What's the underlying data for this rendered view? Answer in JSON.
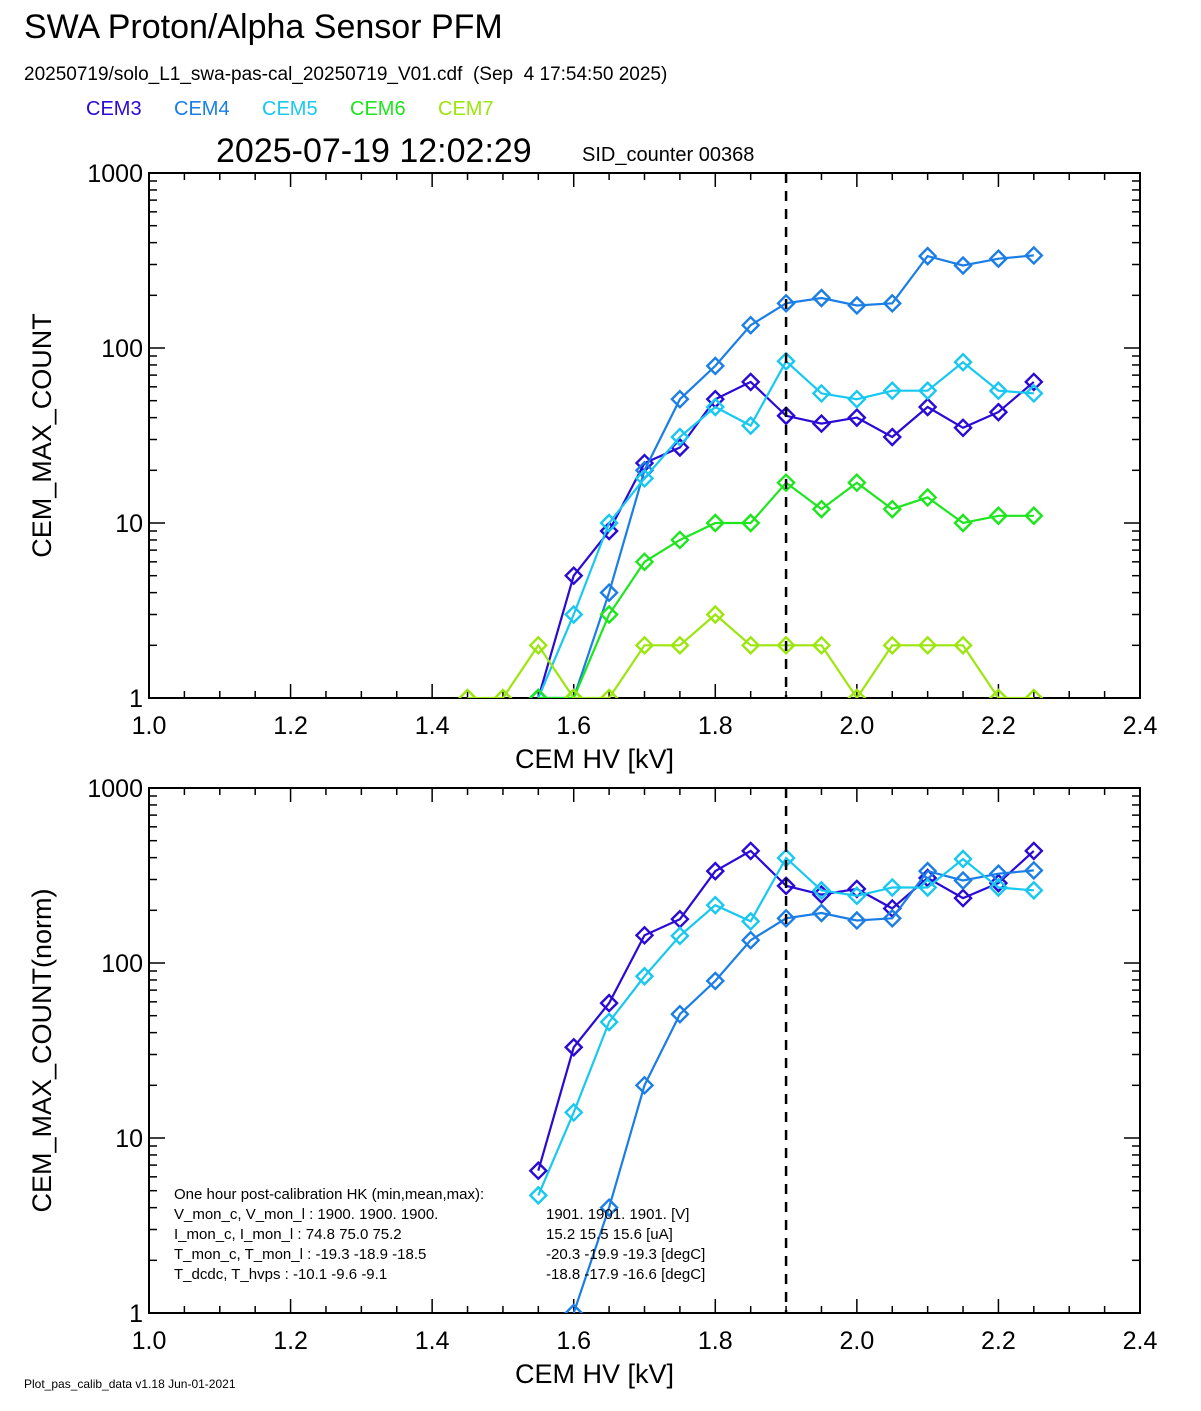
{
  "header": {
    "title": "SWA Proton/Alpha Sensor PFM",
    "subtitle": "20250719/solo_L1_swa-pas-cal_20250719_V01.cdf  (Sep  4 17:54:50 2025)",
    "timestamp": "2025-07-19 12:02:29",
    "sid": "SID_counter 00368"
  },
  "legend": [
    {
      "label": "CEM3",
      "color": "#2a0ad6"
    },
    {
      "label": "CEM4",
      "color": "#1a7ee6"
    },
    {
      "label": "CEM5",
      "color": "#18c8f0"
    },
    {
      "label": "CEM6",
      "color": "#1ee61e"
    },
    {
      "label": "CEM7",
      "color": "#9ce60e"
    }
  ],
  "footer": "Plot_pas_calib_data v1.18 Jun-01-2021",
  "hk": {
    "lines": [
      {
        "a": "One hour post-calibration HK (min,mean,max):",
        "b": ""
      },
      {
        "a": "V_mon_c, V_mon_l :   1900.  1900.  1900.",
        "b": "1901.  1901.  1901. [V]"
      },
      {
        "a": "I_mon_c,  I_mon_l :     74.8   75.0   75.2",
        "b": "15.2   15.5   15.6  [uA]"
      },
      {
        "a": "T_mon_c, T_mon_l :   -19.3  -18.9  -18.5",
        "b": "-20.3  -19.9  -19.3  [degC]"
      },
      {
        "a": "T_dcdc,     T_hvps :    -10.1   -9.6   -9.1",
        "b": "-18.8  -17.9  -16.6  [degC]"
      }
    ]
  },
  "chart_data": [
    {
      "type": "line",
      "xlabel": "CEM HV [kV]",
      "ylabel": "CEM_MAX_COUNT",
      "xlim": [
        1.0,
        2.4
      ],
      "ylim": [
        1,
        1000
      ],
      "yscale": "log",
      "xticks": [
        "1.0",
        "1.2",
        "1.4",
        "1.6",
        "1.8",
        "2.0",
        "2.2",
        "2.4"
      ],
      "yticks": [
        "1",
        "10",
        "100",
        "1000"
      ],
      "vline": 1.9,
      "series": [
        {
          "name": "CEM3",
          "color": "#2a0ad6",
          "x": [
            1.55,
            1.6,
            1.65,
            1.7,
            1.75,
            1.8,
            1.85,
            1.9,
            1.95,
            2.0,
            2.05,
            2.1,
            2.15,
            2.2,
            2.25
          ],
          "y": [
            1,
            5,
            9,
            22,
            27,
            51,
            64,
            41,
            37,
            40,
            31,
            46,
            35,
            43,
            64
          ]
        },
        {
          "name": "CEM4",
          "color": "#1a7ee6",
          "x": [
            1.55,
            1.6,
            1.65,
            1.7,
            1.75,
            1.8,
            1.85,
            1.9,
            1.95,
            2.0,
            2.05,
            2.1,
            2.15,
            2.2,
            2.25
          ],
          "y": [
            1,
            1,
            4,
            20,
            51,
            79,
            135,
            180,
            193,
            175,
            180,
            335,
            296,
            324,
            338
          ]
        },
        {
          "name": "CEM5",
          "color": "#18c8f0",
          "x": [
            1.55,
            1.6,
            1.65,
            1.7,
            1.75,
            1.8,
            1.85,
            1.9,
            1.95,
            2.0,
            2.05,
            2.1,
            2.15,
            2.2,
            2.25
          ],
          "y": [
            1,
            3,
            10,
            18,
            31,
            46,
            36,
            84,
            55,
            51,
            57,
            57,
            83,
            57,
            55
          ]
        },
        {
          "name": "CEM6",
          "color": "#1ee61e",
          "x": [
            1.55,
            1.6,
            1.65,
            1.7,
            1.75,
            1.8,
            1.85,
            1.9,
            1.95,
            2.0,
            2.05,
            2.1,
            2.15,
            2.2,
            2.25
          ],
          "y": [
            1,
            1,
            3,
            6,
            8,
            10,
            10,
            17,
            12,
            17,
            12,
            14,
            10,
            11,
            11
          ]
        },
        {
          "name": "CEM7",
          "color": "#9ce60e",
          "x": [
            1.45,
            1.5,
            1.55,
            1.6,
            1.65,
            1.7,
            1.75,
            1.8,
            1.85,
            1.9,
            1.95,
            2.0,
            2.05,
            2.1,
            2.15,
            2.2,
            2.25
          ],
          "y": [
            1,
            1,
            2,
            1,
            1,
            2,
            2,
            3,
            2,
            2,
            2,
            1,
            2,
            2,
            2,
            1,
            1
          ]
        }
      ]
    },
    {
      "type": "line",
      "xlabel": "CEM HV [kV]",
      "ylabel": "CEM_MAX_COUNT(norm)",
      "xlim": [
        1.0,
        2.4
      ],
      "ylim": [
        1,
        1000
      ],
      "yscale": "log",
      "xticks": [
        "1.0",
        "1.2",
        "1.4",
        "1.6",
        "1.8",
        "2.0",
        "2.2",
        "2.4"
      ],
      "yticks": [
        "1",
        "10",
        "100",
        "1000"
      ],
      "vline": 1.9,
      "series": [
        {
          "name": "CEM3",
          "color": "#2a0ad6",
          "x": [
            1.55,
            1.6,
            1.65,
            1.7,
            1.75,
            1.8,
            1.85,
            1.9,
            1.95,
            2.0,
            2.05,
            2.1,
            2.15,
            2.2,
            2.25
          ],
          "y": [
            6.5,
            33,
            59,
            144,
            178,
            335,
            437,
            276,
            246,
            265,
            205,
            306,
            235,
            286,
            437
          ]
        },
        {
          "name": "CEM4",
          "color": "#1a7ee6",
          "x": [
            1.6,
            1.65,
            1.7,
            1.75,
            1.8,
            1.85,
            1.9,
            1.95,
            2.0,
            2.05,
            2.1,
            2.15,
            2.2,
            2.25
          ],
          "y": [
            1,
            4,
            20,
            51,
            79,
            135,
            180,
            193,
            175,
            180,
            335,
            296,
            324,
            338
          ]
        },
        {
          "name": "CEM5",
          "color": "#18c8f0",
          "x": [
            1.55,
            1.6,
            1.65,
            1.7,
            1.75,
            1.8,
            1.85,
            1.9,
            1.95,
            2.0,
            2.05,
            2.1,
            2.15,
            2.2,
            2.25
          ],
          "y": [
            4.7,
            14,
            46,
            84,
            143,
            214,
            173,
            398,
            260,
            242,
            270,
            270,
            393,
            270,
            260
          ]
        }
      ]
    }
  ]
}
